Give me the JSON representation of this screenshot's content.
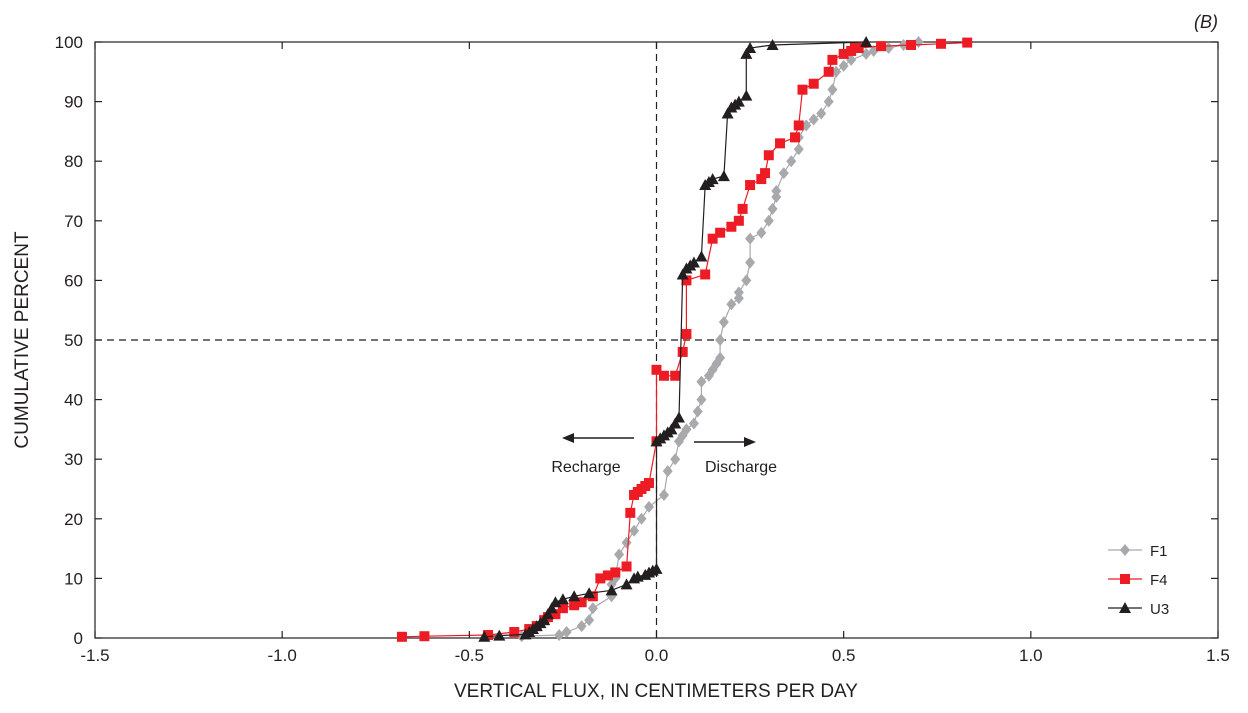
{
  "panel_label": "(B)",
  "colors": {
    "F1": "#a7a9ac",
    "F4": "#ed1c24",
    "U3": "#231f20",
    "axis": "#231f20"
  },
  "chart_data": {
    "type": "line",
    "title": "",
    "xlabel": "VERTICAL FLUX, IN CENTIMETERS PER DAY",
    "ylabel": "CUMULATIVE PERCENT",
    "xlim": [
      -1.5,
      1.5
    ],
    "ylim": [
      0,
      100
    ],
    "x_ticks": [
      -1.5,
      -1.0,
      -0.5,
      0.0,
      0.5,
      1.0,
      1.5
    ],
    "x_tick_labels": [
      "-1.5",
      "-1.0",
      "-0.5",
      "0.0",
      "0.5",
      "1.0",
      "1.5"
    ],
    "y_ticks": [
      0,
      10,
      20,
      30,
      40,
      50,
      60,
      70,
      80,
      90,
      100
    ],
    "y_tick_labels": [
      "0",
      "10",
      "20",
      "30",
      "40",
      "50",
      "60",
      "70",
      "80",
      "90",
      "100"
    ],
    "grid": false,
    "reference_lines": {
      "x": 0.0,
      "y": 50
    },
    "legend_position": "bottom-right",
    "annotations": {
      "left": "Recharge",
      "right": "Discharge"
    },
    "series": [
      {
        "name": "F1",
        "marker": "diamond",
        "x": [
          -0.36,
          -0.26,
          -0.24,
          -0.2,
          -0.18,
          -0.17,
          -0.12,
          -0.12,
          -0.11,
          -0.1,
          -0.08,
          -0.06,
          -0.04,
          -0.02,
          0.02,
          0.03,
          0.05,
          0.06,
          0.07,
          0.08,
          0.1,
          0.11,
          0.12,
          0.12,
          0.14,
          0.15,
          0.16,
          0.17,
          0.17,
          0.18,
          0.2,
          0.22,
          0.22,
          0.24,
          0.25,
          0.25,
          0.28,
          0.3,
          0.31,
          0.32,
          0.32,
          0.34,
          0.36,
          0.38,
          0.38,
          0.4,
          0.42,
          0.44,
          0.46,
          0.47,
          0.48,
          0.5,
          0.52,
          0.56,
          0.58,
          0.62,
          0.66,
          0.7
        ],
        "y": [
          0.3,
          0.5,
          1,
          2,
          3,
          5,
          7,
          9,
          10,
          14,
          16,
          18,
          20,
          22,
          24,
          28,
          30,
          33,
          34,
          35,
          36,
          38,
          40,
          43,
          44,
          45,
          46,
          47,
          50,
          53,
          56,
          57,
          58,
          60,
          63,
          67,
          68,
          70,
          72,
          74,
          75,
          78,
          80,
          82,
          84,
          86,
          87,
          88,
          90,
          92,
          95,
          96,
          97,
          98,
          98.5,
          99,
          99.5,
          100
        ]
      },
      {
        "name": "F4",
        "marker": "square",
        "x": [
          -0.68,
          -0.62,
          -0.45,
          -0.38,
          -0.34,
          -0.32,
          -0.3,
          -0.29,
          -0.27,
          -0.25,
          -0.22,
          -0.2,
          -0.17,
          -0.15,
          -0.13,
          -0.11,
          -0.08,
          -0.07,
          -0.06,
          -0.05,
          -0.04,
          -0.03,
          -0.02,
          0.0,
          0.0,
          0.02,
          0.05,
          0.07,
          0.08,
          0.08,
          0.13,
          0.15,
          0.17,
          0.2,
          0.22,
          0.23,
          0.25,
          0.28,
          0.29,
          0.3,
          0.33,
          0.37,
          0.38,
          0.39,
          0.42,
          0.46,
          0.47,
          0.5,
          0.52,
          0.53,
          0.54,
          0.6,
          0.68,
          0.76,
          0.83
        ],
        "y": [
          0.2,
          0.3,
          0.5,
          1,
          1.5,
          2,
          3,
          3.5,
          4,
          5,
          5.5,
          6,
          7,
          10,
          10.5,
          11,
          12,
          21,
          24,
          24.5,
          25,
          25.5,
          26,
          33,
          45,
          44,
          44,
          48,
          51,
          60,
          61,
          67,
          68,
          69,
          70,
          72,
          76,
          77,
          78,
          81,
          83,
          84,
          86,
          92,
          93,
          95,
          97,
          98,
          98.5,
          99,
          99,
          99.3,
          99.5,
          99.7,
          99.9
        ]
      },
      {
        "name": "U3",
        "marker": "triangle",
        "x": [
          -0.46,
          -0.42,
          -0.35,
          -0.34,
          -0.33,
          -0.32,
          -0.31,
          -0.3,
          -0.29,
          -0.28,
          -0.27,
          -0.25,
          -0.22,
          -0.18,
          -0.12,
          -0.08,
          -0.06,
          -0.05,
          -0.03,
          -0.02,
          -0.01,
          0.0,
          0.0,
          0.01,
          0.02,
          0.03,
          0.04,
          0.05,
          0.06,
          0.07,
          0.08,
          0.09,
          0.1,
          0.12,
          0.13,
          0.14,
          0.15,
          0.18,
          0.19,
          0.2,
          0.21,
          0.22,
          0.24,
          0.24,
          0.25,
          0.31,
          0.56
        ],
        "y": [
          0.2,
          0.4,
          0.6,
          1,
          1.5,
          2,
          2.5,
          3,
          4,
          5,
          6,
          6.5,
          7,
          7.5,
          8,
          9,
          10,
          10.3,
          10.6,
          11,
          11.3,
          11.6,
          33,
          33.5,
          34,
          34.5,
          35,
          36,
          37,
          61,
          62,
          62.5,
          63,
          64,
          76,
          76.5,
          77,
          77.5,
          88,
          89,
          89.5,
          90,
          91,
          98,
          99,
          99.5,
          100
        ]
      }
    ]
  }
}
